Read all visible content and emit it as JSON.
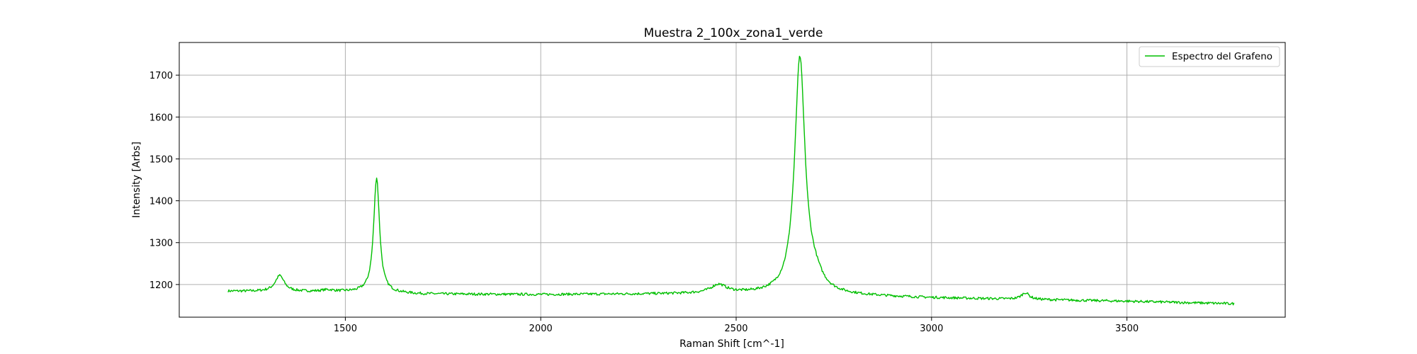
{
  "chart_data": {
    "type": "line",
    "title": "Muestra 2_100x_zona1_verde",
    "xlabel": "Raman Shift [cm^-1]",
    "ylabel": "Intensity [Arbs]",
    "xlim": [
      1075,
      3905
    ],
    "ylim": [
      1122,
      1778
    ],
    "xticks": [
      1500,
      2000,
      2500,
      3000,
      3500
    ],
    "yticks": [
      1200,
      1300,
      1400,
      1500,
      1600,
      1700
    ],
    "grid": true,
    "legend_position": "top-right",
    "series": [
      {
        "name": "Espectro del Grafeno",
        "color": "#00bf00",
        "x_range": [
          1200,
          3775
        ],
        "baseline": [
          [
            1200,
            1184
          ],
          [
            1500,
            1182
          ],
          [
            1700,
            1177
          ],
          [
            2000,
            1176
          ],
          [
            2500,
            1178
          ],
          [
            2800,
            1173
          ],
          [
            3000,
            1168
          ],
          [
            3500,
            1160
          ],
          [
            3775,
            1154
          ]
        ],
        "peaks": [
          {
            "center": 1332,
            "height": 38,
            "width": 14
          },
          {
            "center": 1580,
            "height": 275,
            "width": 9
          },
          {
            "center": 1455,
            "height": 4,
            "width": 20
          },
          {
            "center": 2455,
            "height": 20,
            "width": 24
          },
          {
            "center": 2663,
            "height": 560,
            "width": 16
          },
          {
            "center": 2700,
            "height": 30,
            "width": 25
          },
          {
            "center": 3240,
            "height": 16,
            "width": 12
          }
        ],
        "noise": 3
      }
    ]
  }
}
